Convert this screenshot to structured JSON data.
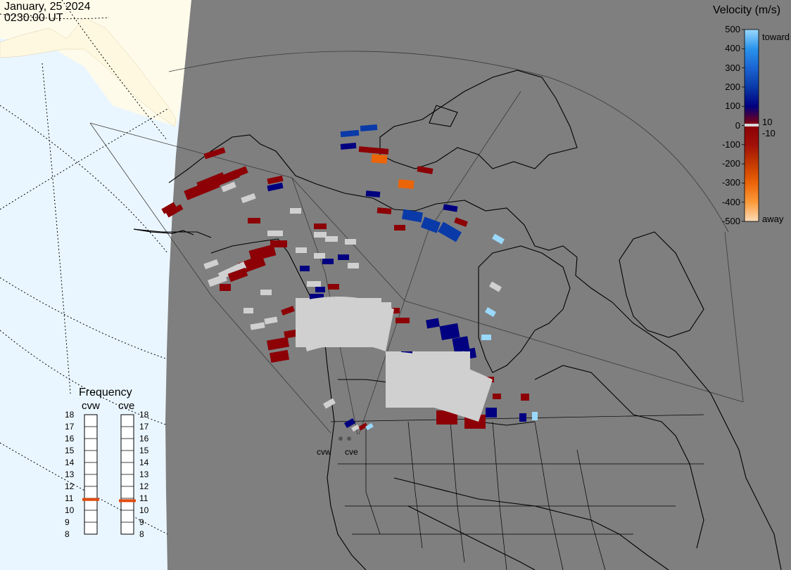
{
  "header": {
    "date": "January, 25 2024",
    "time": "0230:00 UT"
  },
  "velocity_scale": {
    "title": "Velocity (m/s)",
    "ticks": [
      "500",
      "400",
      "300",
      "200",
      "100",
      "0",
      "-100",
      "-200",
      "-300",
      "-400",
      "-500"
    ],
    "inner_ticks": [
      "10",
      "-10"
    ],
    "toward_label": "toward",
    "away_label": "away",
    "colors": [
      "#fddcb8",
      "#fc9a3a",
      "#ec6408",
      "#c43a00",
      "#a01008",
      "#8c0006",
      "#000080",
      "#0a3aa8",
      "#1a64d2",
      "#2a94ec",
      "#9ad8fc"
    ]
  },
  "frequency_panel": {
    "title": "Frequency",
    "radars": [
      {
        "name": "cvw",
        "frequency_mhz": 10.9
      },
      {
        "name": "cve",
        "frequency_mhz": 10.8
      }
    ],
    "ticks": [
      "18",
      "17",
      "16",
      "15",
      "14",
      "13",
      "12",
      "11",
      "10",
      "9",
      "8"
    ],
    "indicator_color": "#e04a10"
  },
  "sites": [
    {
      "name": "cvw"
    },
    {
      "name": "cve"
    }
  ],
  "map": {
    "night_color": "#7f7f7f",
    "day_ocean_color": "#eaf6ff",
    "day_land_color": "#fffbea",
    "coast_color": "#000000",
    "ground_scatter_color": "#d0d0d0"
  }
}
